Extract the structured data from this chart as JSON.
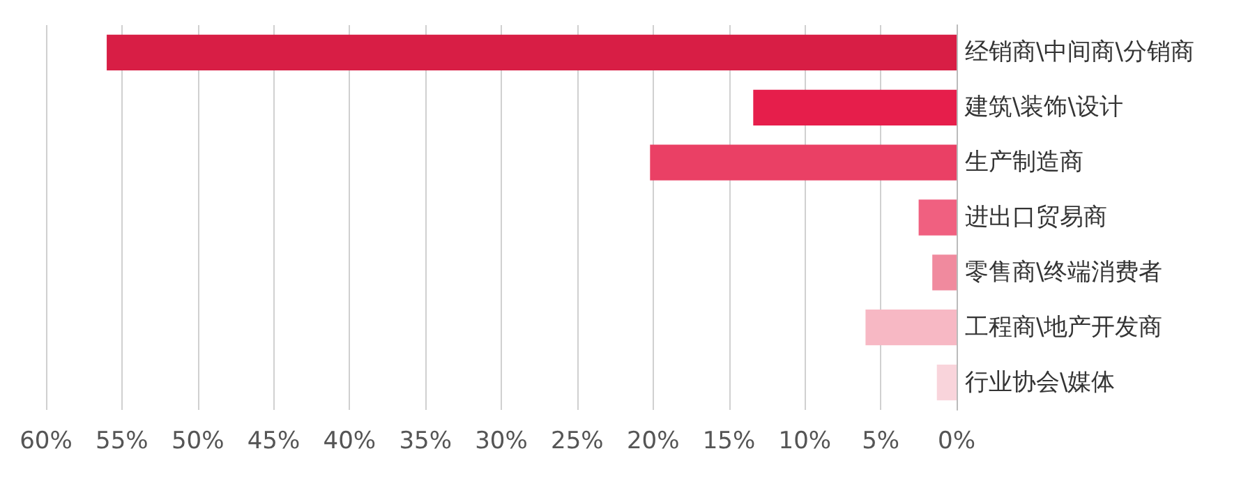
{
  "chart_data": {
    "type": "bar",
    "orientation": "horizontal",
    "categories": [
      "经销商\\中间商\\分销商",
      "建筑\\装饰\\设计",
      "生产制造商",
      "进出口贸易商",
      "零售商\\终端消费者",
      "工程商\\地产开发商",
      "行业协会\\媒体"
    ],
    "values": [
      56.0,
      13.4,
      20.2,
      2.5,
      1.6,
      6.0,
      1.3
    ],
    "colors": [
      "#d81e45",
      "#e61e4b",
      "#ea4065",
      "#f06080",
      "#f08a9e",
      "#f7b8c4",
      "#f9d4db"
    ],
    "xlim": [
      60,
      0
    ],
    "xticks": [
      {
        "value": 60,
        "label": "60%"
      },
      {
        "value": 55,
        "label": "55%"
      },
      {
        "value": 50,
        "label": "50%"
      },
      {
        "value": 45,
        "label": "45%"
      },
      {
        "value": 40,
        "label": "40%"
      },
      {
        "value": 35,
        "label": "35%"
      },
      {
        "value": 30,
        "label": "30%"
      },
      {
        "value": 25,
        "label": "25%"
      },
      {
        "value": 20,
        "label": "20%"
      },
      {
        "value": 15,
        "label": "15%"
      },
      {
        "value": 10,
        "label": "10%"
      },
      {
        "value": 5,
        "label": "5%"
      },
      {
        "value": 0,
        "label": "0%"
      }
    ],
    "grid": "x"
  }
}
